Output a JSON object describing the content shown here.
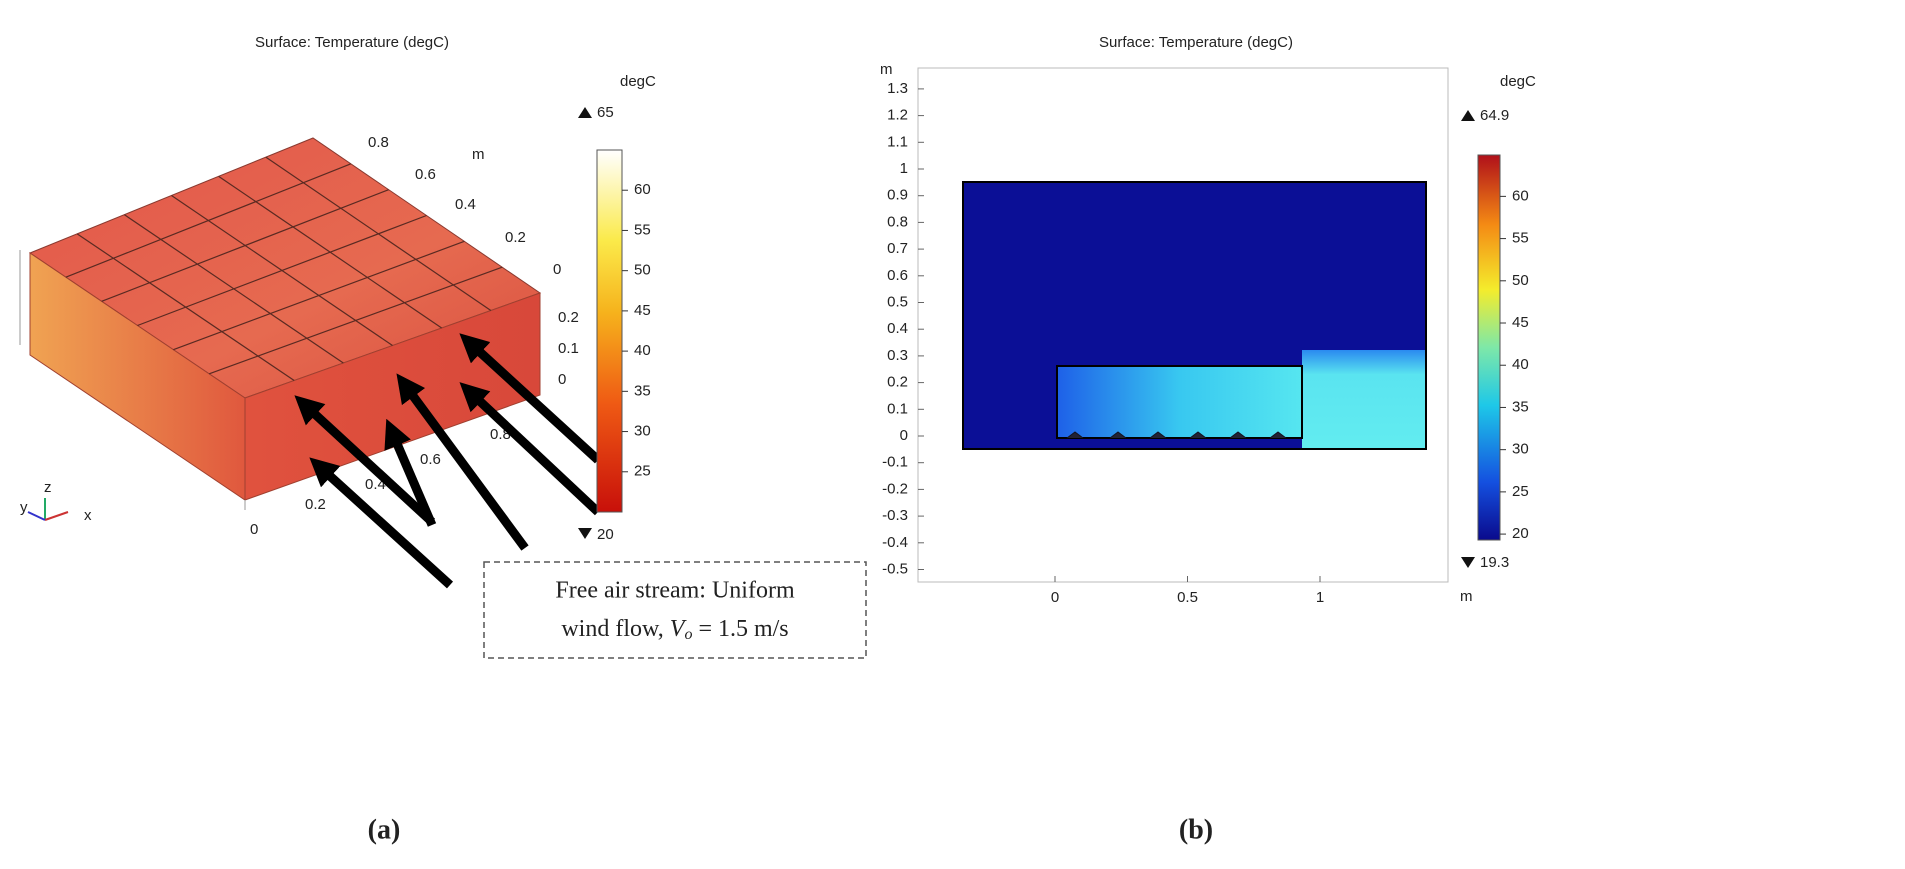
{
  "panel_a": {
    "title": "Surface: Temperature (degC)",
    "colorbar_unit": "degC",
    "colorbar_max": 65,
    "colorbar_min": 20,
    "colorbar_ticks": [
      25,
      30,
      35,
      40,
      45,
      50,
      55,
      60
    ],
    "y_axis_ticks": [
      0.8,
      0.6,
      0.4,
      0.2,
      0
    ],
    "z_axis_ticks": [
      0.2,
      0.1,
      0
    ],
    "x_axis_ticks": [
      0,
      0.2,
      0.4,
      0.6,
      0.8
    ],
    "axis_unit": "m",
    "triad": [
      "y",
      "z",
      "x"
    ],
    "annotation": {
      "line1": "Free air stream: Uniform",
      "line2_prefix": "wind flow,",
      "symbol": "V",
      "subscript": "o",
      "equation": "= 1.5 m/s"
    },
    "caption": "(a)"
  },
  "panel_b": {
    "title": "Surface: Temperature (degC)",
    "colorbar_unit": "degC",
    "colorbar_max": 64.9,
    "colorbar_min": 19.3,
    "colorbar_ticks": [
      20,
      25,
      30,
      35,
      40,
      45,
      50,
      55,
      60
    ],
    "y_unit": "m",
    "x_unit": "m",
    "yticks": [
      1.3,
      1.2,
      1.1,
      1,
      0.9,
      0.8,
      0.7,
      0.6,
      0.5,
      0.4,
      0.3,
      0.2,
      0.1,
      0,
      -0.1,
      -0.2,
      -0.3,
      -0.4,
      -0.5
    ],
    "xticks": [
      0,
      0.5,
      1
    ],
    "caption": "(b)"
  }
}
